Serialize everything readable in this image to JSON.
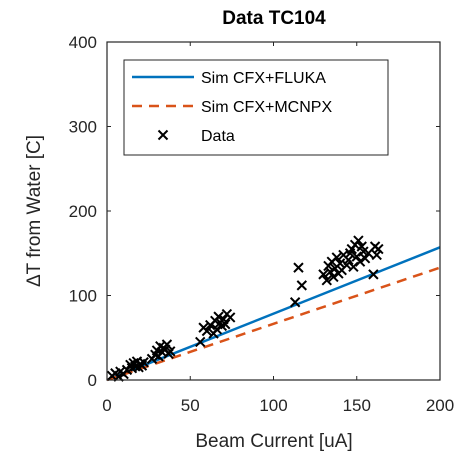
{
  "chart_data": {
    "type": "scatter",
    "title": "Data TC104",
    "xlabel": "Beam Current [uA]",
    "ylabel": "ΔT from Water [C]",
    "xlim": [
      0,
      200
    ],
    "ylim": [
      0,
      400
    ],
    "xticks": [
      0,
      50,
      100,
      150,
      200
    ],
    "yticks": [
      0,
      100,
      200,
      300,
      400
    ],
    "legend_position": "top-left",
    "series": [
      {
        "name": "Sim CFX+FLUKA",
        "kind": "line",
        "style": "solid",
        "color": "#0072BD",
        "x": [
          0,
          200
        ],
        "y": [
          0,
          157
        ]
      },
      {
        "name": "Sim CFX+MCNPX",
        "kind": "line",
        "style": "dashed",
        "color": "#D95319",
        "x": [
          0,
          200
        ],
        "y": [
          0,
          133
        ]
      },
      {
        "name": "Data",
        "kind": "scatter",
        "marker": "x",
        "color": "#000000",
        "x": [
          3,
          5,
          7,
          8,
          10,
          12,
          14,
          15,
          16,
          17,
          18,
          19,
          20,
          21,
          22,
          27,
          29,
          30,
          31,
          32,
          33,
          34,
          35,
          36,
          37,
          38,
          56,
          58,
          60,
          62,
          64,
          65,
          66,
          67,
          68,
          69,
          70,
          71,
          72,
          74,
          113,
          115,
          117,
          130,
          132,
          133,
          134,
          135,
          136,
          137,
          138,
          139,
          140,
          141,
          142,
          144,
          145,
          146,
          147,
          148,
          149,
          150,
          151,
          152,
          153,
          154,
          155,
          157,
          160,
          161,
          162,
          163
        ],
        "y": [
          5,
          8,
          4,
          10,
          7,
          12,
          18,
          14,
          20,
          16,
          22,
          15,
          19,
          17,
          21,
          25,
          30,
          35,
          28,
          40,
          33,
          38,
          36,
          42,
          31,
          34,
          45,
          62,
          58,
          65,
          55,
          70,
          60,
          75,
          68,
          64,
          72,
          66,
          78,
          74,
          92,
          133,
          112,
          125,
          118,
          135,
          128,
          140,
          122,
          132,
          145,
          126,
          138,
          130,
          148,
          136,
          142,
          150,
          155,
          134,
          160,
          146,
          165,
          140,
          158,
          152,
          144,
          150,
          125,
          158,
          148,
          155
        ]
      }
    ]
  }
}
